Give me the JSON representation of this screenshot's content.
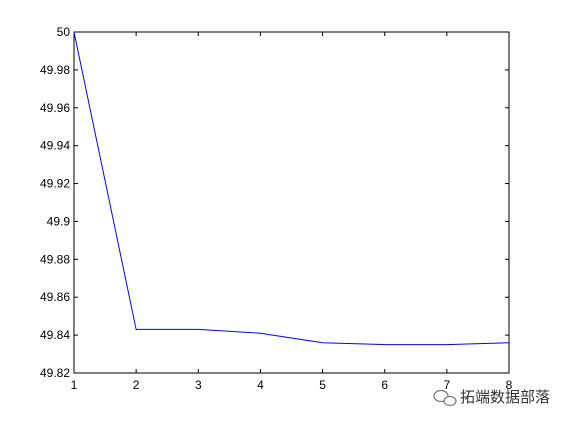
{
  "chart_data": {
    "type": "line",
    "title": "",
    "xlabel": "",
    "ylabel": "",
    "xlim": [
      1,
      8
    ],
    "ylim": [
      49.82,
      50
    ],
    "grid": false,
    "x_ticks": [
      1,
      2,
      3,
      4,
      5,
      6,
      7,
      8
    ],
    "x_tick_labels": [
      "1",
      "2",
      "3",
      "4",
      "5",
      "6",
      "7",
      "8"
    ],
    "y_ticks": [
      49.82,
      49.84,
      49.86,
      49.88,
      49.9,
      49.92,
      49.94,
      49.96,
      49.98,
      50
    ],
    "y_tick_labels": [
      "49.82",
      "49.84",
      "49.86",
      "49.88",
      "49.9",
      "49.92",
      "49.94",
      "49.96",
      "49.98",
      "50"
    ],
    "series": [
      {
        "color": "#0000ff",
        "x": [
          1,
          2,
          3,
          4,
          5,
          6,
          7,
          8
        ],
        "y": [
          50.0,
          49.843,
          49.843,
          49.841,
          49.836,
          49.835,
          49.835,
          49.836
        ]
      }
    ]
  },
  "watermark": {
    "text": "拓端数据部落",
    "icon": "wechat-logo-icon"
  }
}
